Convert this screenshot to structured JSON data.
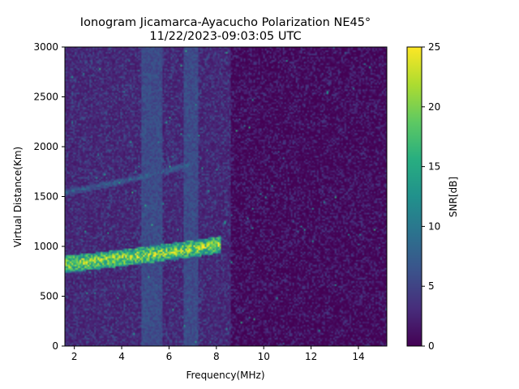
{
  "chart_data": {
    "type": "heatmap",
    "title": "Ionogram Jicamarca-Ayacucho Polarization NE45°",
    "subtitle": "11/22/2023-09:03:05 UTC",
    "xlabel": "Frequency(MHz)",
    "ylabel": "Virtual Distance(Km)",
    "xlim": [
      1.6,
      15.2
    ],
    "ylim": [
      0,
      3000
    ],
    "x_ticks": [
      2,
      4,
      6,
      8,
      10,
      12,
      14
    ],
    "y_ticks": [
      0,
      500,
      1000,
      1500,
      2000,
      2500,
      3000
    ],
    "colorbar": {
      "label": "SNR[dB]",
      "min": 0,
      "max": 25,
      "ticks": [
        0,
        5,
        10,
        15,
        20,
        25
      ],
      "colormap": "viridis"
    },
    "grid": false,
    "features": [
      {
        "type": "trace",
        "x_start": 1.6,
        "x_end": 8.2,
        "y_start": 820,
        "y_end": 1020,
        "snr": 25
      },
      {
        "type": "trace",
        "x_start": 1.6,
        "x_end": 6.9,
        "y_start": 1540,
        "y_end": 1820,
        "snr": 9
      },
      {
        "type": "band",
        "x_start": 4.8,
        "x_end": 5.7,
        "snr": 6
      },
      {
        "type": "band",
        "x_start": 6.6,
        "x_end": 7.2,
        "snr": 6
      }
    ]
  }
}
